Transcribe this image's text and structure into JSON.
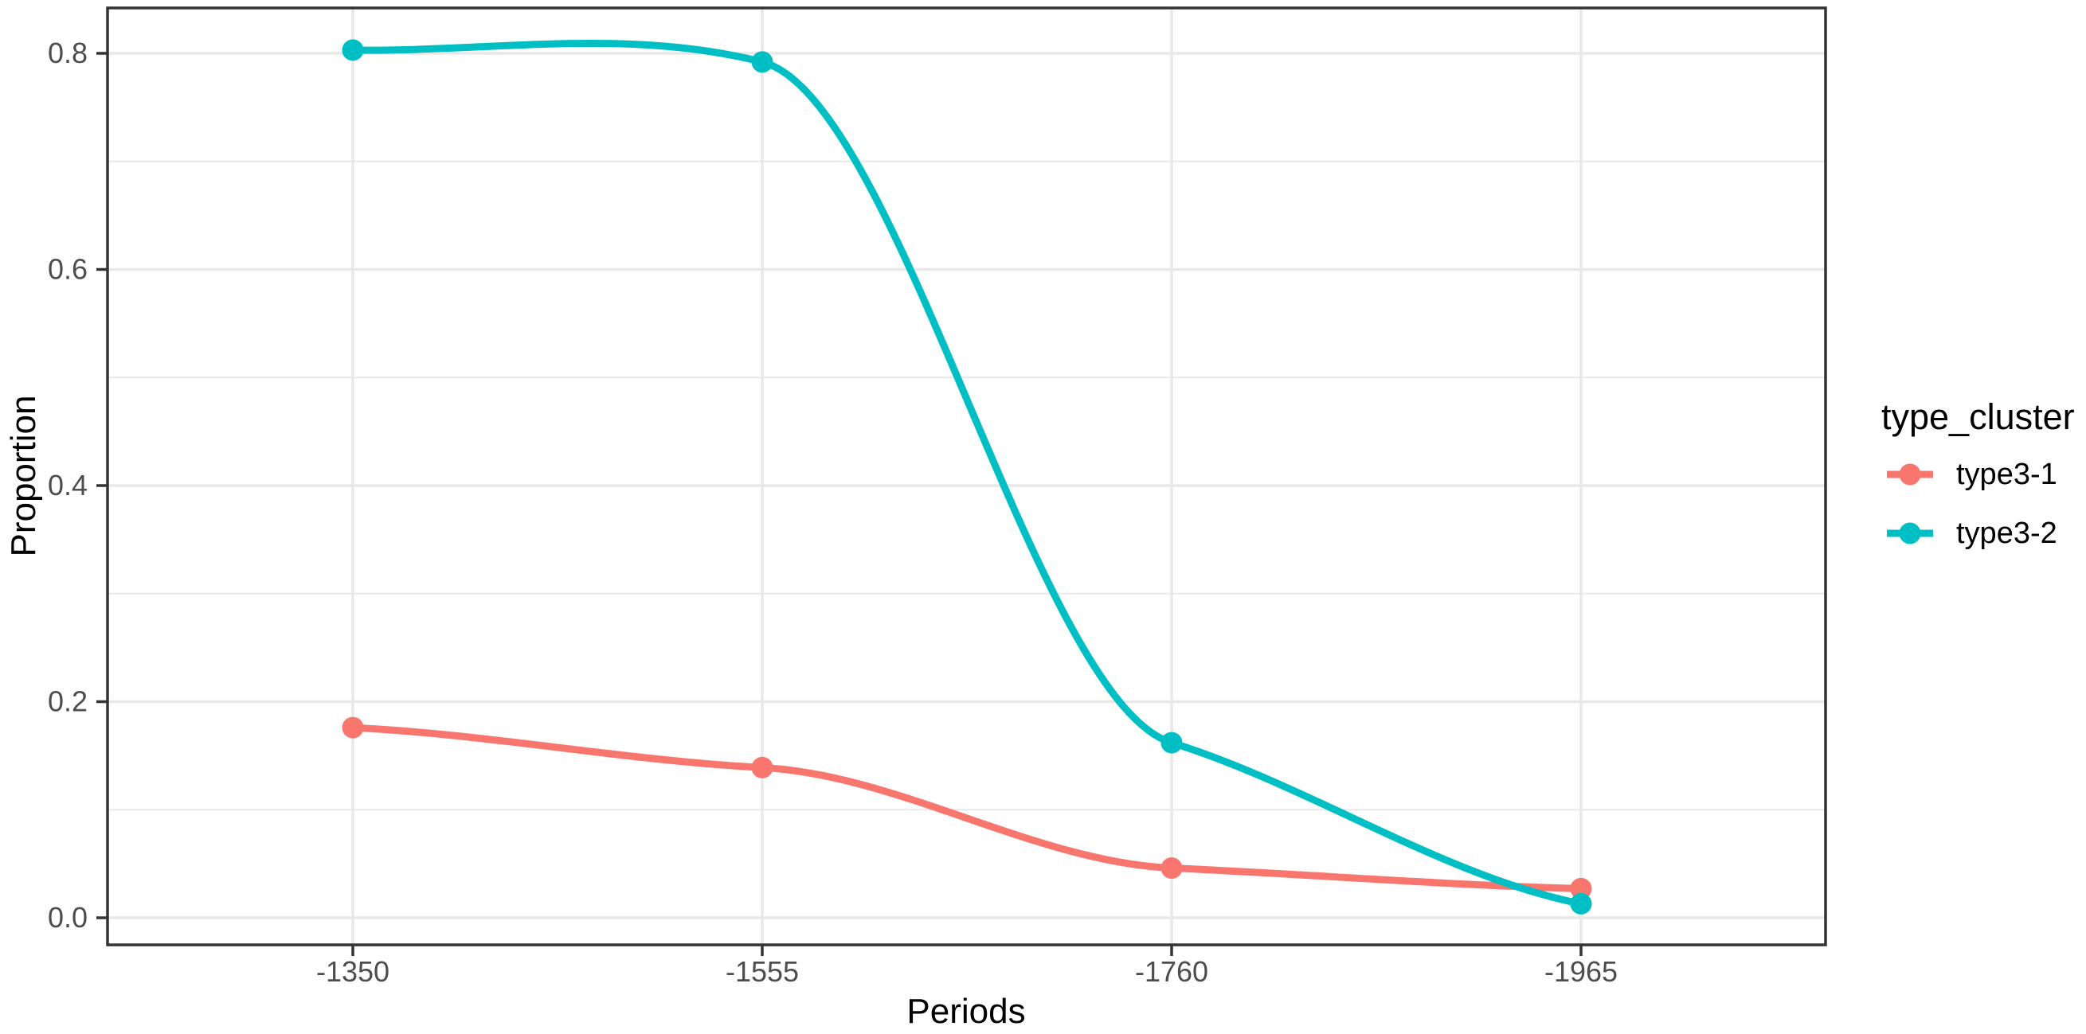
{
  "chart_data": {
    "type": "line",
    "title": "",
    "xlabel": "Periods",
    "ylabel": "Proportion",
    "legend_title": "type_cluster",
    "legend_position": "right",
    "categories": [
      "-1350",
      "-1555",
      "-1760",
      "-1965"
    ],
    "series": [
      {
        "name": "type3-1",
        "color": "#F8766D",
        "values": [
          0.176,
          0.139,
          0.046,
          0.027
        ]
      },
      {
        "name": "type3-2",
        "color": "#00BFC4",
        "values": [
          0.803,
          0.792,
          0.162,
          0.013
        ]
      }
    ],
    "ytick_labels": [
      "0.0",
      "0.2",
      "0.4",
      "0.6",
      "0.8"
    ],
    "ytick_values": [
      0.0,
      0.2,
      0.4,
      0.6,
      0.8
    ],
    "minor_ytick_values": [
      0.1,
      0.3,
      0.5,
      0.7
    ],
    "ylim": [
      -0.026,
      0.842
    ],
    "grid": true,
    "smoothed": true,
    "colors": {
      "grid": "#E8E8E8",
      "panel_border": "#333333",
      "tick": "#333333",
      "tick_label": "#4D4D4D",
      "title_text": "#000000",
      "background": "#FFFFFF"
    }
  }
}
